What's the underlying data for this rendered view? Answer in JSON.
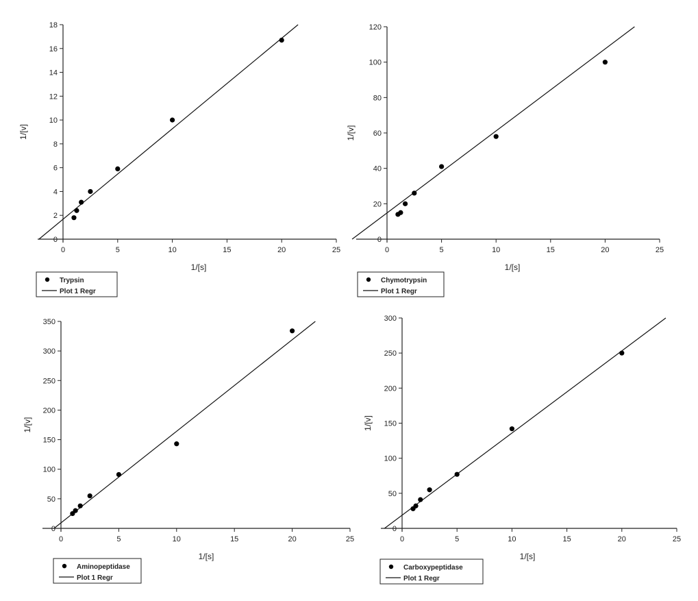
{
  "chart_data": [
    {
      "type": "scatter",
      "xlabel": "1/[s]",
      "ylabel": "1/[v]",
      "xlim": [
        0,
        25
      ],
      "ylim": [
        0,
        18
      ],
      "xticks": [
        0,
        5,
        10,
        15,
        20,
        25
      ],
      "yticks": [
        0,
        2,
        4,
        6,
        8,
        10,
        12,
        14,
        16,
        18
      ],
      "grid": false,
      "legend": "below-left",
      "series": [
        {
          "name": "Trypsin",
          "kind": "points",
          "x": [
            1,
            1.25,
            1.67,
            2.5,
            5,
            10,
            20
          ],
          "y": [
            1.8,
            2.4,
            3.1,
            4.0,
            5.9,
            10.0,
            16.7
          ]
        },
        {
          "name": "Plot 1 Regr",
          "kind": "line",
          "x": [
            -2.2,
            21.5
          ],
          "y": [
            0,
            18
          ]
        }
      ]
    },
    {
      "type": "scatter",
      "xlabel": "1/[s]",
      "ylabel": "1/[v]",
      "xlim": [
        0,
        25
      ],
      "ylim": [
        0,
        120
      ],
      "xticks": [
        0,
        5,
        10,
        15,
        20,
        25
      ],
      "yticks": [
        0,
        20,
        40,
        60,
        80,
        100,
        120
      ],
      "grid": false,
      "legend": "below-left",
      "series": [
        {
          "name": "Chymotrypsin",
          "kind": "points",
          "x": [
            1,
            1.25,
            1.67,
            2.5,
            5,
            10,
            20
          ],
          "y": [
            14,
            15,
            20,
            26,
            41,
            58,
            100
          ]
        },
        {
          "name": "Plot 1 Regr",
          "kind": "line",
          "x": [
            -3.2,
            22.7
          ],
          "y": [
            0,
            120
          ]
        }
      ]
    },
    {
      "type": "scatter",
      "xlabel": "1/[s]",
      "ylabel": "1/[v]",
      "xlim": [
        0,
        25
      ],
      "ylim": [
        0,
        350
      ],
      "xticks": [
        0,
        5,
        10,
        15,
        20,
        25
      ],
      "yticks": [
        0,
        50,
        100,
        150,
        200,
        250,
        300,
        350
      ],
      "grid": false,
      "legend": "below-left",
      "series": [
        {
          "name": "Aminopeptidase",
          "kind": "points",
          "x": [
            1,
            1.25,
            1.67,
            2.5,
            5,
            10,
            20
          ],
          "y": [
            25,
            30,
            38,
            55,
            91,
            143,
            334
          ]
        },
        {
          "name": "Plot 1 Regr",
          "kind": "line",
          "x": [
            -0.6,
            22
          ],
          "y": [
            0,
            350
          ]
        }
      ]
    },
    {
      "type": "scatter",
      "xlabel": "1/[s]",
      "ylabel": "1/[v]",
      "xlim": [
        0,
        25
      ],
      "ylim": [
        0,
        300
      ],
      "xticks": [
        0,
        5,
        10,
        15,
        20,
        25
      ],
      "yticks": [
        0,
        50,
        100,
        150,
        200,
        250,
        300
      ],
      "grid": false,
      "legend": "below-left",
      "series": [
        {
          "name": "Carboxypeptidase",
          "kind": "points",
          "x": [
            1,
            1.25,
            1.67,
            2.5,
            5,
            10,
            20
          ],
          "y": [
            28,
            32,
            41,
            55,
            77,
            142,
            250
          ]
        },
        {
          "name": "Plot 1 Regr",
          "kind": "line",
          "x": [
            -1.6,
            24
          ],
          "y": [
            0,
            300
          ]
        }
      ]
    }
  ]
}
